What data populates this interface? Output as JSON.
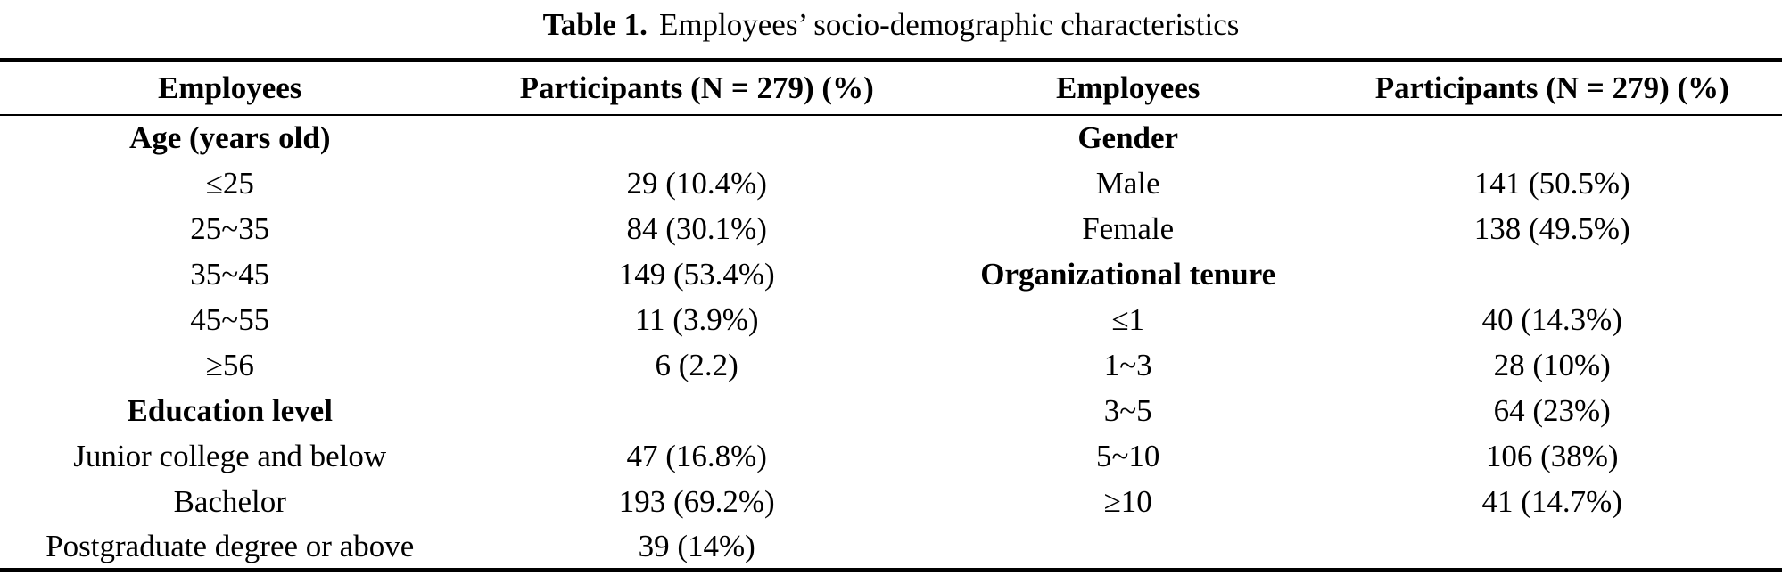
{
  "title": {
    "label": "Table 1.",
    "text": "Employees’ socio-demographic characteristics"
  },
  "table": {
    "headers": [
      "Employees",
      "Participants (N = 279) (%)",
      "Employees",
      "Participants (N = 279) (%)"
    ],
    "rows": [
      [
        {
          "t": "Age (years old)",
          "b": true
        },
        {
          "t": ""
        },
        {
          "t": "Gender",
          "b": true
        },
        {
          "t": ""
        }
      ],
      [
        {
          "t": "≤25"
        },
        {
          "t": "29 (10.4%)"
        },
        {
          "t": "Male"
        },
        {
          "t": "141 (50.5%)"
        }
      ],
      [
        {
          "t": "25~35"
        },
        {
          "t": "84 (30.1%)"
        },
        {
          "t": "Female"
        },
        {
          "t": "138 (49.5%)"
        }
      ],
      [
        {
          "t": "35~45"
        },
        {
          "t": "149 (53.4%)"
        },
        {
          "t": "Organizational tenure",
          "b": true
        },
        {
          "t": ""
        }
      ],
      [
        {
          "t": "45~55"
        },
        {
          "t": "11 (3.9%)"
        },
        {
          "t": "≤1"
        },
        {
          "t": "40 (14.3%)"
        }
      ],
      [
        {
          "t": "≥56"
        },
        {
          "t": "6 (2.2)"
        },
        {
          "t": "1~3"
        },
        {
          "t": "28 (10%)"
        }
      ],
      [
        {
          "t": "Education level",
          "b": true
        },
        {
          "t": ""
        },
        {
          "t": "3~5"
        },
        {
          "t": "64 (23%)"
        }
      ],
      [
        {
          "t": "Junior college and below"
        },
        {
          "t": "47 (16.8%)"
        },
        {
          "t": "5~10"
        },
        {
          "t": "106 (38%)"
        }
      ],
      [
        {
          "t": "Bachelor"
        },
        {
          "t": "193 (69.2%)"
        },
        {
          "t": "≥10"
        },
        {
          "t": "41 (14.7%)"
        }
      ],
      [
        {
          "t": "Postgraduate degree or above"
        },
        {
          "t": "39 (14%)"
        },
        {
          "t": ""
        },
        {
          "t": ""
        }
      ]
    ]
  },
  "colors": {
    "text": "#000000",
    "background": "#ffffff",
    "rule": "#000000"
  }
}
